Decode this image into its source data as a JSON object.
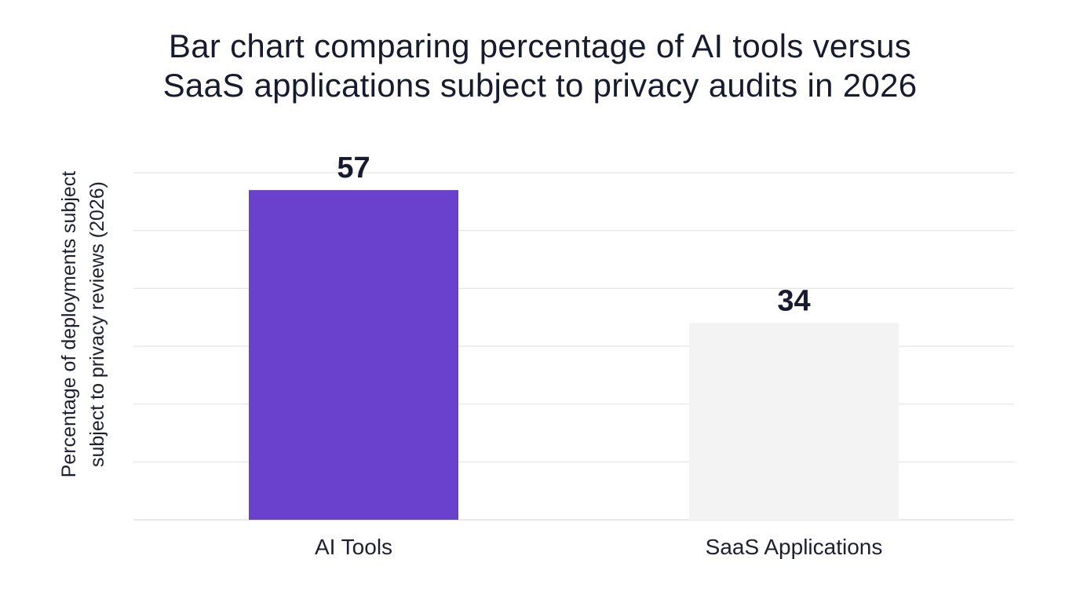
{
  "chart_data": {
    "type": "bar",
    "title_lines": [
      "Bar chart comparing percentage of AI tools versus",
      "SaaS applications subject to privacy audits in 2026"
    ],
    "ylabel_lines": [
      "Percentage of deployments subject",
      "subject to privacy reviews (2026)"
    ],
    "xlabel": "",
    "categories": [
      "AI Tools",
      "SaaS Applications"
    ],
    "values": [
      57,
      34
    ],
    "data_labels": [
      "57",
      "34"
    ],
    "bar_colors": [
      "#6941cd",
      "#f3f3f3"
    ],
    "ylim": [
      0,
      60
    ],
    "grid": true,
    "gridline_count": 6
  }
}
